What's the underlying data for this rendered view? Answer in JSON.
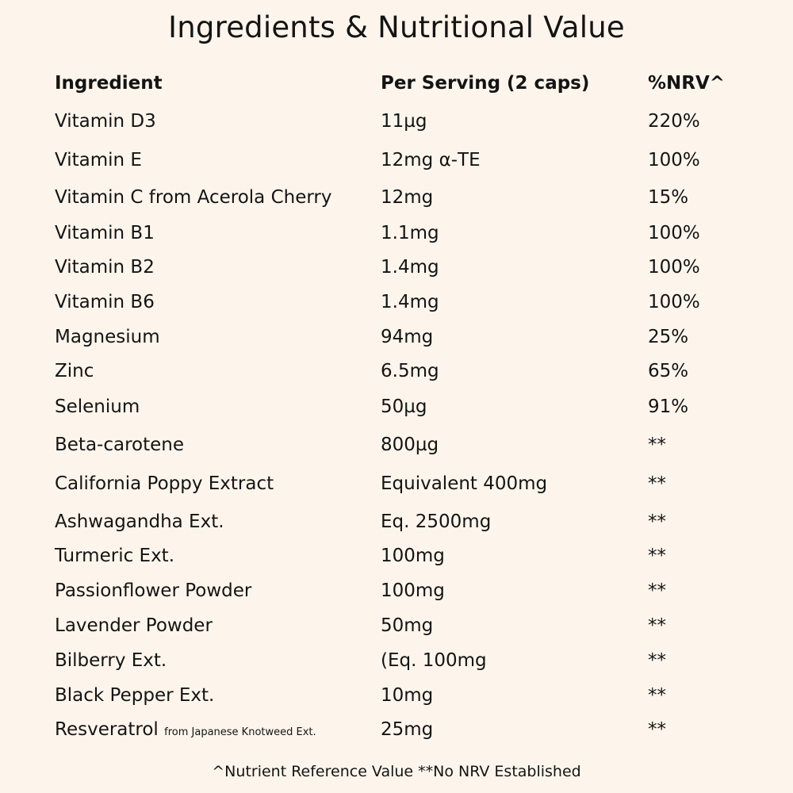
{
  "title": "Ingredients & Nutritional Value",
  "table": {
    "headers": {
      "ingredient": "Ingredient",
      "per_serving": "Per Serving (2 caps)",
      "nrv": "%NRV^"
    },
    "rows": [
      {
        "ingredient": "Vitamin D3",
        "note": "",
        "amount": "11µg",
        "nrv": "220%"
      },
      {
        "ingredient": "Vitamin E",
        "note": "",
        "amount": "12mg α-TE",
        "nrv": "100%"
      },
      {
        "ingredient": "Vitamin C from Acerola Cherry",
        "note": "",
        "amount": "12mg",
        "nrv": "15%"
      },
      {
        "ingredient": "Vitamin B1",
        "note": "",
        "amount": "1.1mg",
        "nrv": "100%"
      },
      {
        "ingredient": "Vitamin B2",
        "note": "",
        "amount": "1.4mg",
        "nrv": "100%"
      },
      {
        "ingredient": "Vitamin B6",
        "note": "",
        "amount": "1.4mg",
        "nrv": "100%"
      },
      {
        "ingredient": "Magnesium",
        "note": "",
        "amount": "94mg",
        "nrv": "25%"
      },
      {
        "ingredient": "Zinc",
        "note": "",
        "amount": "6.5mg",
        "nrv": "65%"
      },
      {
        "ingredient": "Selenium",
        "note": "",
        "amount": "50µg",
        "nrv": "91%"
      },
      {
        "ingredient": "Beta-carotene",
        "note": "",
        "amount": "800µg",
        "nrv": "**"
      },
      {
        "ingredient": "California Poppy Extract",
        "note": "",
        "amount": "Equivalent 400mg",
        "nrv": "**"
      },
      {
        "ingredient": "Ashwagandha Ext.",
        "note": "",
        "amount": "Eq. 2500mg",
        "nrv": "**"
      },
      {
        "ingredient": "Turmeric Ext.",
        "note": "",
        "amount": "100mg",
        "nrv": "**"
      },
      {
        "ingredient": "Passionflower Powder",
        "note": "",
        "amount": "100mg",
        "nrv": "**"
      },
      {
        "ingredient": "Lavender Powder",
        "note": "",
        "amount": "50mg",
        "nrv": "**"
      },
      {
        "ingredient": "Bilberry Ext.",
        "note": "",
        "amount": "(Eq. 100mg",
        "nrv": "**"
      },
      {
        "ingredient": "Black Pepper Ext.",
        "note": "",
        "amount": "10mg",
        "nrv": "**"
      },
      {
        "ingredient": "Resveratrol",
        "note": "from Japanese Knotweed Ext.",
        "amount": "25mg",
        "nrv": "**"
      }
    ]
  },
  "footer": "^Nutrient Reference Value **No NRV Established"
}
